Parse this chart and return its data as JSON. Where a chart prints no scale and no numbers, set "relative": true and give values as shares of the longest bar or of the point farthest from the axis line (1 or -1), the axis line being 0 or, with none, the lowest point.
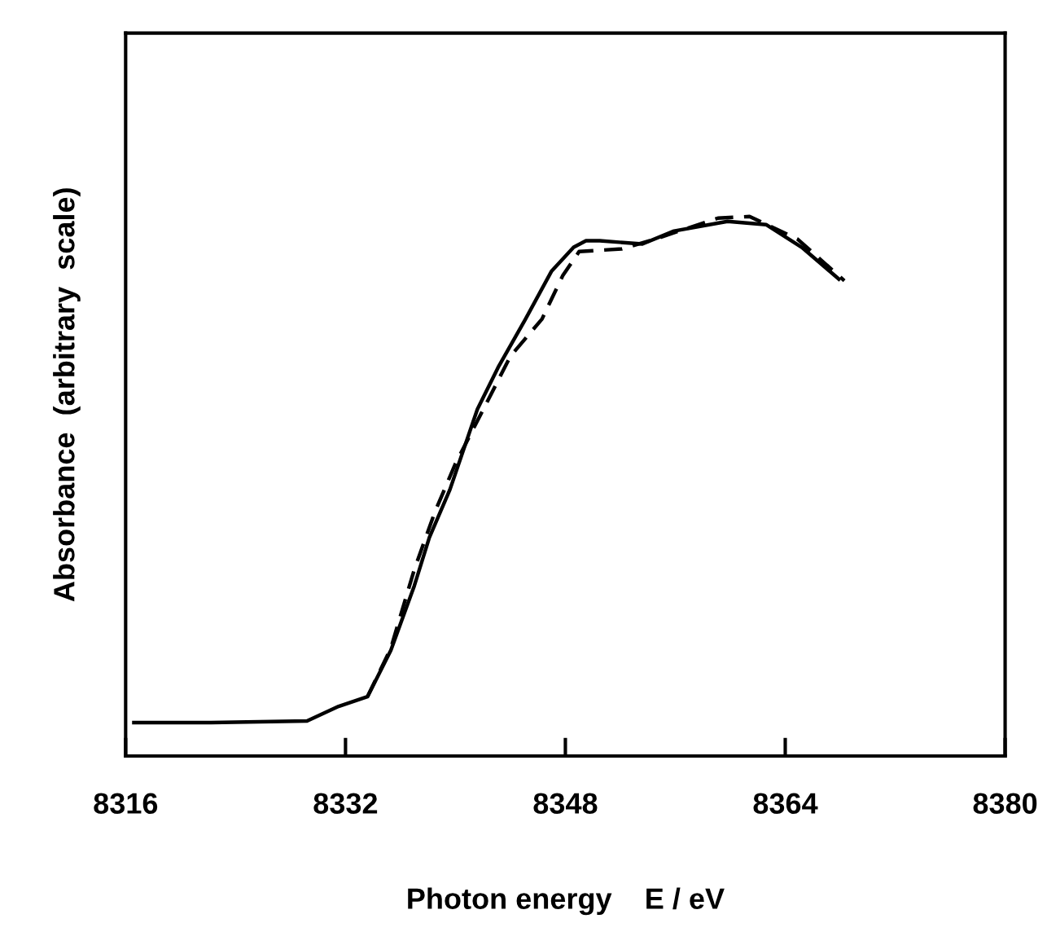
{
  "chart_data": {
    "type": "line",
    "relative": true,
    "xlabel": "Photon energy    E / eV",
    "ylabel": "Absorbance  (arbitrary  scale)",
    "xlim": [
      8316,
      8380
    ],
    "xticks": [
      8316,
      8332,
      8348,
      8364,
      8380
    ],
    "grid": false,
    "legend": false,
    "marker": "none",
    "series": [
      {
        "color": "#000000",
        "line_style": "solid",
        "x": [
          8316.6,
          8322.2,
          8329.2,
          8331.5,
          8333.6,
          8335.3,
          8337.0,
          8338.1,
          8339.6,
          8341.6,
          8343.1,
          8345.1,
          8347.0,
          8348.6,
          8349.5,
          8350.5,
          8353.6,
          8355.9,
          8359.8,
          8362.6,
          8365.2,
          8367.9
        ],
        "values": [
          0.062,
          0.062,
          0.065,
          0.092,
          0.11,
          0.196,
          0.315,
          0.405,
          0.494,
          0.643,
          0.72,
          0.81,
          0.899,
          0.943,
          0.955,
          0.955,
          0.949,
          0.973,
          0.991,
          0.985,
          0.943,
          0.884
        ]
      },
      {
        "color": "#000000",
        "line_style": "dashed",
        "x": [
          8333.6,
          8335.3,
          8337.0,
          8338.5,
          8340.0,
          8342.4,
          8344.0,
          8346.3,
          8347.8,
          8349.0,
          8352.1,
          8354.5,
          8359.1,
          8361.4,
          8364.9,
          8368.3
        ],
        "values": [
          0.11,
          0.2,
          0.345,
          0.452,
          0.542,
          0.661,
          0.741,
          0.81,
          0.89,
          0.935,
          0.94,
          0.958,
          0.997,
          1.0,
          0.958,
          0.881
        ]
      }
    ]
  }
}
